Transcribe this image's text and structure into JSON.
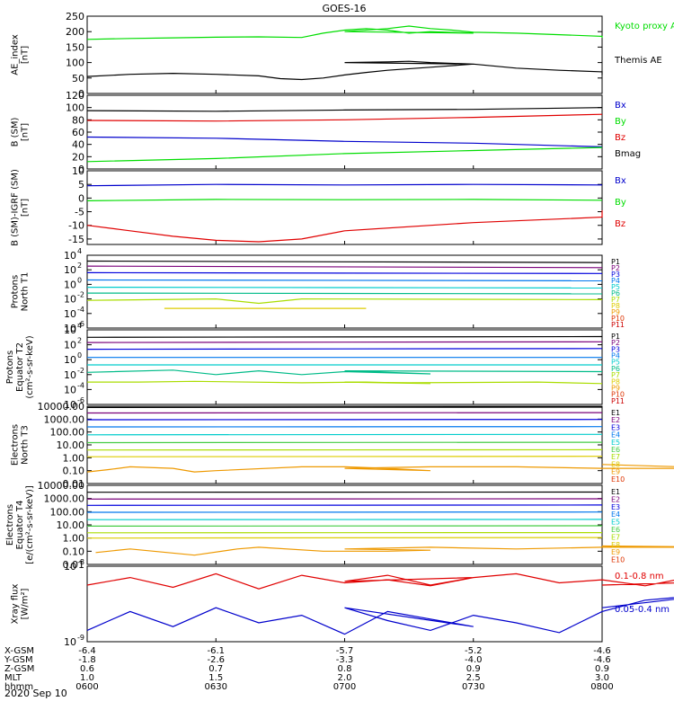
{
  "title": "GOES-16",
  "date_label": "2020 Sep 10",
  "colors": {
    "black": "#000000",
    "red": "#e00000",
    "green": "#00dd00",
    "blue": "#0000cc",
    "P": [
      "#000000",
      "#7a007a",
      "#0000dd",
      "#0077ee",
      "#00cccc",
      "#00bb88",
      "#aadd00",
      "#ddcc00",
      "#ee9900",
      "#dd3300",
      "#cc0000"
    ],
    "E": [
      "#000000",
      "#7a007a",
      "#0000dd",
      "#0077ee",
      "#00cccc",
      "#44cc44",
      "#aadd00",
      "#ddcc00",
      "#ee9900",
      "#dd3300"
    ]
  },
  "chart_data": [
    {
      "type": "line",
      "id": "ae",
      "ylabel": [
        "AE_index",
        "[nT]"
      ],
      "ylim": [
        0,
        250
      ],
      "yticks": [
        "250",
        "200",
        "150",
        "100",
        "50",
        "0"
      ],
      "series": [
        {
          "name": "Kyoto proxy AE",
          "color": "#00dd00",
          "x": [
            600,
            610,
            620,
            630,
            640,
            650,
            655,
            660,
            665,
            670,
            675,
            680,
            690,
            700,
            710,
            715,
            720,
            725,
            730,
            740,
            750,
            760,
            800
          ],
          "values": [
            175,
            178,
            180,
            182,
            183,
            181,
            195,
            205,
            210,
            205,
            195,
            200,
            195,
            200,
            210,
            218,
            210,
            205,
            198,
            195,
            190,
            185,
            180
          ]
        },
        {
          "name": "Themis AE",
          "color": "#000000",
          "x": [
            600,
            610,
            620,
            630,
            640,
            645,
            650,
            655,
            660,
            665,
            670,
            680,
            690,
            700,
            710,
            715,
            720,
            730,
            740,
            750,
            760,
            800
          ],
          "values": [
            55,
            62,
            65,
            62,
            57,
            48,
            45,
            50,
            60,
            68,
            75,
            85,
            95,
            100,
            102,
            104,
            100,
            95,
            82,
            75,
            70,
            60
          ]
        }
      ]
    },
    {
      "type": "line",
      "id": "bsm",
      "ylabel": [
        "B (SM)",
        "[nT]"
      ],
      "ylim": [
        0,
        120
      ],
      "yticks": [
        "120",
        "100",
        "80",
        "60",
        "40",
        "20",
        "0"
      ],
      "series": [
        {
          "name": "Bx",
          "color": "#0000cc",
          "x": [
            600,
            630,
            700,
            730,
            800
          ],
          "values": [
            52,
            50,
            45,
            42,
            36
          ]
        },
        {
          "name": "By",
          "color": "#00dd00",
          "x": [
            600,
            630,
            700,
            730,
            800
          ],
          "values": [
            12,
            17,
            25,
            30,
            35
          ]
        },
        {
          "name": "Bz",
          "color": "#e00000",
          "x": [
            600,
            630,
            700,
            730,
            800
          ],
          "values": [
            79,
            78,
            80,
            84,
            89
          ]
        },
        {
          "name": "Bmag",
          "color": "#000000",
          "x": [
            600,
            630,
            700,
            730,
            800
          ],
          "values": [
            95,
            94,
            96,
            97,
            100
          ]
        }
      ]
    },
    {
      "type": "line",
      "id": "digrf",
      "ylabel": [
        "B (SM)-IGRF (SM)",
        "[nT]"
      ],
      "ylim": [
        -17,
        10
      ],
      "yticks": [
        "10",
        "5",
        "0",
        "-5",
        "-10",
        "-15"
      ],
      "series": [
        {
          "name": "Bx",
          "color": "#0000cc",
          "x": [
            600,
            630,
            700,
            730,
            800
          ],
          "values": [
            4.5,
            5,
            4.8,
            5,
            4.8
          ]
        },
        {
          "name": "By",
          "color": "#00dd00",
          "x": [
            600,
            630,
            700,
            730,
            800
          ],
          "values": [
            -1,
            -0.5,
            -0.6,
            -0.5,
            -0.8
          ]
        },
        {
          "name": "Bz",
          "color": "#e00000",
          "x": [
            600,
            610,
            620,
            630,
            640,
            650,
            700,
            730,
            760,
            800
          ],
          "values": [
            -10,
            -12,
            -14,
            -15.5,
            -16,
            -15,
            -12,
            -9,
            -7,
            -4.5
          ]
        }
      ]
    },
    {
      "type": "line",
      "id": "pn",
      "ylabel": [
        "Protons",
        "North T1"
      ],
      "yscale": "log",
      "ylim_exp": [
        -6,
        4
      ],
      "ytick_exps": [
        4,
        2,
        0,
        -2,
        -4,
        -6
      ],
      "legend": [
        "P1",
        "P2",
        "P3",
        "P4",
        "P5",
        "P6",
        "P7",
        "P8",
        "P9",
        "P10",
        "P11"
      ],
      "series": [
        {
          "name": "P1",
          "x": [
            600,
            800
          ],
          "values_exp": [
            3.2,
            3.0
          ]
        },
        {
          "name": "P2",
          "x": [
            600,
            800
          ],
          "values_exp": [
            2.5,
            2.3
          ]
        },
        {
          "name": "P3",
          "x": [
            600,
            800
          ],
          "values_exp": [
            1.6,
            1.5
          ]
        },
        {
          "name": "P4",
          "x": [
            600,
            800
          ],
          "values_exp": [
            0.6,
            0.5
          ]
        },
        {
          "name": "P5",
          "x": [
            600,
            800
          ],
          "values_exp": [
            -0.4,
            -0.5
          ]
        },
        {
          "name": "P6",
          "x": [
            600,
            800
          ],
          "values_exp": [
            -1.2,
            -1.3
          ]
        },
        {
          "name": "P7",
          "x": [
            600,
            630,
            640,
            650,
            800
          ],
          "values_exp": [
            -2.2,
            -2.0,
            -2.6,
            -2.0,
            -2.1
          ]
        },
        {
          "name": "P8",
          "x": [
            618,
            626,
            648,
            665
          ],
          "values_exp": [
            -3.3,
            -3.3,
            -3.3,
            -3.3
          ]
        }
      ]
    },
    {
      "type": "line",
      "id": "pe",
      "ylabel": [
        "Protons",
        "Equator T2",
        "(cm²-s-sr-keV)"
      ],
      "yscale": "log",
      "ylim_exp": [
        -6,
        4
      ],
      "ytick_exps": [
        4,
        2,
        0,
        -2,
        -4,
        -6
      ],
      "legend": [
        "P1",
        "P2",
        "P3",
        "P4",
        "P5",
        "P6",
        "P7",
        "P8",
        "P9",
        "P10",
        "P11"
      ],
      "series": [
        {
          "name": "P1",
          "x": [
            600,
            800
          ],
          "values_exp": [
            3.0,
            3.1
          ]
        },
        {
          "name": "P2",
          "x": [
            600,
            800
          ],
          "values_exp": [
            2.3,
            2.4
          ]
        },
        {
          "name": "P3",
          "x": [
            600,
            800
          ],
          "values_exp": [
            1.4,
            1.5
          ]
        },
        {
          "name": "P4",
          "x": [
            600,
            800
          ],
          "values_exp": [
            0.3,
            0.3
          ]
        },
        {
          "name": "P5",
          "x": [
            600,
            800
          ],
          "values_exp": [
            -0.7,
            -0.7
          ]
        },
        {
          "name": "P6",
          "x": [
            600,
            620,
            630,
            640,
            650,
            660,
            680,
            700,
            800
          ],
          "values_exp": [
            -1.7,
            -1.4,
            -2.0,
            -1.5,
            -2.0,
            -1.6,
            -1.9,
            -1.5,
            -1.6
          ]
        },
        {
          "name": "P7",
          "x": [
            600,
            612,
            625,
            650,
            665,
            680,
            700,
            715,
            745,
            760
          ],
          "values_exp": [
            -3.0,
            -3.0,
            -2.9,
            -3.1,
            -3.0,
            -3.2,
            -3.0,
            -3.1,
            -3.0,
            -3.2
          ]
        }
      ]
    },
    {
      "type": "line",
      "id": "en",
      "ylabel": [
        "Electrons",
        "North T3"
      ],
      "yscale": "log",
      "ylim": [
        0.01,
        10000
      ],
      "yticks": [
        "10000.00",
        "1000.00",
        "100.00",
        "10.00",
        "1.00",
        "0.10",
        "0.01"
      ],
      "legend": [
        "E1",
        "E2",
        "E3",
        "E4",
        "E5",
        "E6",
        "E7",
        "E8",
        "E9",
        "E10"
      ],
      "series": [
        {
          "name": "E1",
          "x": [
            600,
            800
          ],
          "values": [
            8000,
            8500
          ]
        },
        {
          "name": "E2",
          "x": [
            600,
            800
          ],
          "values": [
            3000,
            3200
          ]
        },
        {
          "name": "E3",
          "x": [
            600,
            800
          ],
          "values": [
            900,
            950
          ]
        },
        {
          "name": "E4",
          "x": [
            600,
            800
          ],
          "values": [
            250,
            260
          ]
        },
        {
          "name": "E5",
          "x": [
            600,
            800
          ],
          "values": [
            60,
            65
          ]
        },
        {
          "name": "E6",
          "x": [
            600,
            800
          ],
          "values": [
            15,
            16
          ]
        },
        {
          "name": "E7",
          "x": [
            600,
            800
          ],
          "values": [
            4,
            4.2
          ]
        },
        {
          "name": "E8",
          "x": [
            600,
            800
          ],
          "values": [
            1.2,
            1.3
          ]
        },
        {
          "name": "E9",
          "x": [
            600,
            605,
            610,
            620,
            625,
            630,
            650,
            660,
            670,
            680,
            700,
            720,
            730,
            740,
            760,
            790,
            800
          ],
          "values": [
            0.08,
            0.12,
            0.2,
            0.15,
            0.08,
            0.1,
            0.2,
            0.2,
            0.15,
            0.1,
            0.15,
            0.2,
            0.2,
            0.2,
            0.15,
            0.15,
            0.3
          ]
        }
      ]
    },
    {
      "type": "line",
      "id": "ee",
      "ylabel": [
        "Electrons",
        "Equator T4",
        "[e/(cm²-s-sr-keV)]"
      ],
      "yscale": "log",
      "ylim": [
        0.01,
        10000
      ],
      "yticks": [
        "10000.00",
        "1000.00",
        "100.00",
        "10.00",
        "1.00",
        "0.10",
        "0.01"
      ],
      "legend": [
        "E1",
        "E2",
        "E3",
        "E4",
        "E5",
        "E6",
        "E7",
        "E8",
        "E9",
        "E10"
      ],
      "series": [
        {
          "name": "E1",
          "x": [
            600,
            800
          ],
          "values": [
            3000,
            3100
          ]
        },
        {
          "name": "E2",
          "x": [
            600,
            800
          ],
          "values": [
            900,
            950
          ]
        },
        {
          "name": "E3",
          "x": [
            600,
            800
          ],
          "values": [
            300,
            320
          ]
        },
        {
          "name": "E4",
          "x": [
            600,
            800
          ],
          "values": [
            90,
            95
          ]
        },
        {
          "name": "E5",
          "x": [
            600,
            800
          ],
          "values": [
            25,
            26
          ]
        },
        {
          "name": "E6",
          "x": [
            600,
            800
          ],
          "values": [
            8,
            8.5
          ]
        },
        {
          "name": "E7",
          "x": [
            600,
            800
          ],
          "values": [
            2.5,
            2.6
          ]
        },
        {
          "name": "E8",
          "x": [
            600,
            800
          ],
          "values": [
            1.0,
            1.1
          ]
        },
        {
          "name": "E9",
          "x": [
            602,
            610,
            625,
            635,
            640,
            655,
            670,
            680,
            700,
            720,
            740,
            760,
            790,
            800
          ],
          "values": [
            0.08,
            0.15,
            0.05,
            0.15,
            0.2,
            0.1,
            0.1,
            0.12,
            0.15,
            0.2,
            0.15,
            0.2,
            0.2,
            0.25
          ]
        }
      ]
    },
    {
      "type": "line",
      "id": "xray",
      "ylabel": [
        "Xray flux",
        "[W/m²]"
      ],
      "yscale": "log",
      "ylim_exp": [
        -9,
        -8
      ],
      "ytick_exps": [
        -8,
        -9
      ],
      "series": [
        {
          "name": "0.1-0.8 nm",
          "color": "#e00000",
          "x": [
            600,
            610,
            620,
            630,
            640,
            650,
            660,
            670,
            680,
            690,
            700,
            710,
            720,
            730,
            740,
            750,
            760,
            770,
            780,
            790,
            800
          ],
          "values_exp": [
            -8.25,
            -8.15,
            -8.28,
            -8.1,
            -8.3,
            -8.12,
            -8.22,
            -8.18,
            -8.26,
            -8.15,
            -8.2,
            -8.12,
            -8.25,
            -8.15,
            -8.1,
            -8.22,
            -8.18,
            -8.26,
            -8.15,
            -8.2,
            -8.25
          ]
        },
        {
          "name": "0.05-0.4 nm",
          "color": "#0000cc",
          "x": [
            600,
            610,
            620,
            630,
            640,
            650,
            660,
            670,
            680,
            690,
            700,
            710,
            720,
            730,
            740,
            750,
            760,
            770,
            780,
            790,
            800
          ],
          "values_exp": [
            -8.85,
            -8.6,
            -8.8,
            -8.55,
            -8.75,
            -8.65,
            -8.9,
            -8.6,
            -8.7,
            -8.8,
            -8.55,
            -8.72,
            -8.85,
            -8.65,
            -8.75,
            -8.88,
            -8.6,
            -8.45,
            -8.4,
            -8.35,
            -8.55
          ]
        }
      ]
    }
  ],
  "footer": {
    "rows": [
      {
        "label": "X-GSM",
        "values": [
          "-6.4",
          "-6.1",
          "-5.7",
          "-5.2",
          "-4.6"
        ]
      },
      {
        "label": "Y-GSM",
        "values": [
          "-1.8",
          "-2.6",
          "-3.3",
          "-4.0",
          "-4.6"
        ]
      },
      {
        "label": "Z-GSM",
        "values": [
          "0.6",
          "0.7",
          "0.8",
          "0.9",
          "0.9"
        ]
      },
      {
        "label": "MLT",
        "values": [
          "1.0",
          "1.5",
          "2.0",
          "2.5",
          "3.0"
        ]
      },
      {
        "label": "hhmm",
        "values": [
          "0600",
          "0630",
          "0700",
          "0730",
          "0800"
        ]
      }
    ]
  }
}
